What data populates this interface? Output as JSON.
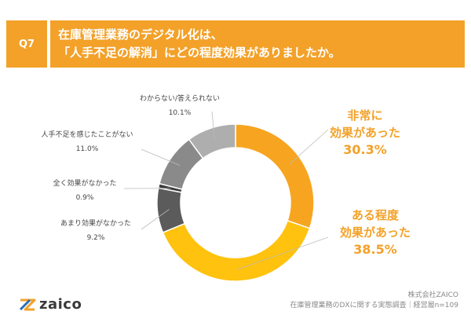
{
  "header": {
    "badge": "Q7",
    "title_line1": "在庫管理業務のデジタル化は、",
    "title_line2": "「人手不足の解消」にどの程度効果がありましたか。"
  },
  "footer": {
    "logo_text": "zaico",
    "company": "株式会社ZAICO",
    "source": "在庫管理業務のDXに関する実態調査｜経営層n=109"
  },
  "colors": {
    "brand": "#F3A129",
    "title_bar": "#F3A129",
    "highlight_text": "#F3A129"
  },
  "chart_data": {
    "type": "pie",
    "subtype": "donut",
    "slices": [
      {
        "label": "非常に効果があった",
        "value": 30.3,
        "value_text": "30.3%",
        "label_lines": [
          "非常に",
          "効果があった"
        ],
        "color": "#F7A520"
      },
      {
        "label": "ある程度効果があった",
        "value": 38.5,
        "value_text": "38.5%",
        "label_lines": [
          "ある程度",
          "効果があった"
        ],
        "color": "#FFC20E"
      },
      {
        "label": "あまり効果がなかった",
        "value": 9.2,
        "value_text": "9.2%",
        "label_lines": [
          "あまり効果がなかった"
        ],
        "color": "#5B5B5B"
      },
      {
        "label": "全く効果がなかった",
        "value": 0.9,
        "value_text": "0.9%",
        "label_lines": [
          "全く効果がなかった"
        ],
        "color": "#3C3C3C"
      },
      {
        "label": "人手不足を感じたことがない",
        "value": 11.0,
        "value_text": "11.0%",
        "label_lines": [
          "人手不足を感じたことがない"
        ],
        "color": "#8A8A8A"
      },
      {
        "label": "わからない/答えられない",
        "value": 10.1,
        "value_text": "10.1%",
        "label_lines": [
          "わからない/答えられない"
        ],
        "color": "#AEAEAE"
      }
    ]
  }
}
